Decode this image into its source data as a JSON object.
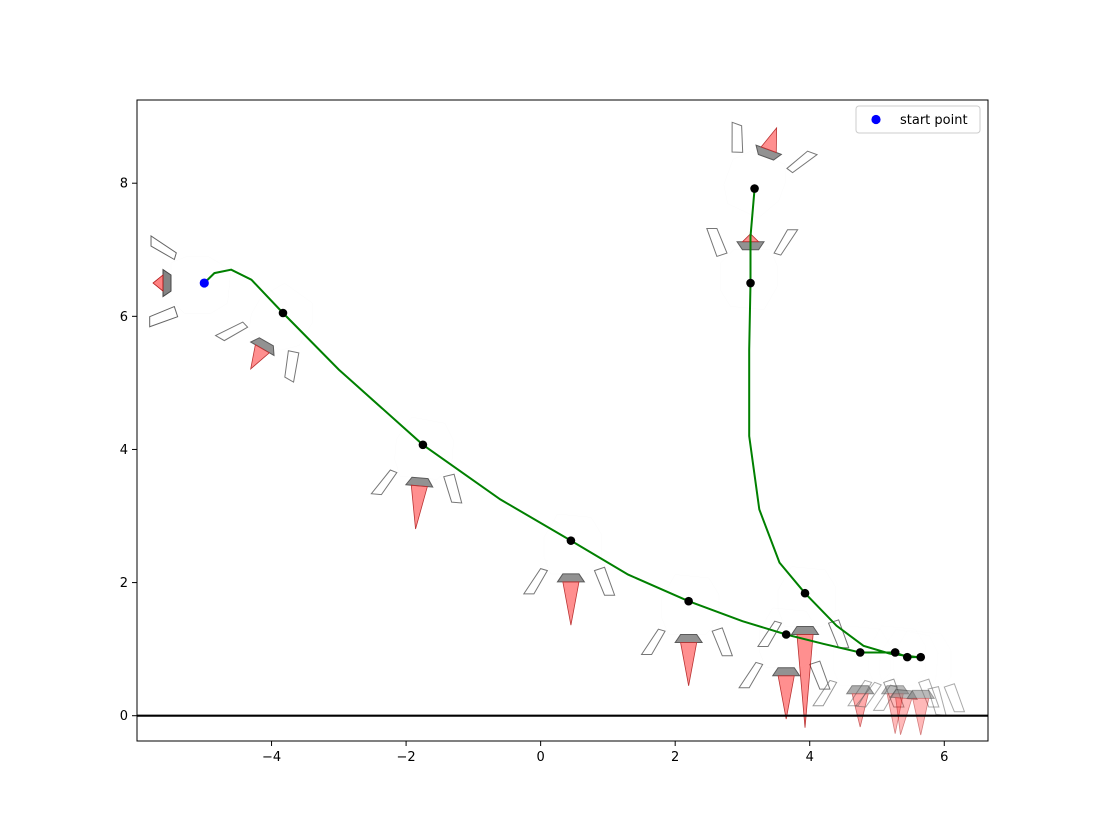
{
  "chart_data": {
    "type": "scatter",
    "title": "",
    "xlabel": "",
    "ylabel": "",
    "xlim": [
      -6.0,
      6.65
    ],
    "ylim": [
      -0.38,
      9.25
    ],
    "x_ticks": [
      -4,
      -2,
      0,
      2,
      4,
      6
    ],
    "x_tick_labels": [
      "−4",
      "−2",
      "0",
      "2",
      "4",
      "6"
    ],
    "y_ticks": [
      0,
      2,
      4,
      6,
      8
    ],
    "y_tick_labels": [
      "0",
      "2",
      "4",
      "6",
      "8"
    ],
    "grid": false,
    "ground_line_y": 0,
    "legend": {
      "placement": "top-right",
      "entries": [
        {
          "label": "start point",
          "color": "#0000ff"
        }
      ]
    },
    "colors": {
      "trajectory": "#008000",
      "start_point": "#0000ff",
      "waypoint": "#000000",
      "flame": "#ff0000",
      "nozzle": "#333333",
      "body_outline": "#555555"
    },
    "series": [
      {
        "name": "start point",
        "points": [
          {
            "x": -5.0,
            "y": 6.5
          }
        ]
      }
    ],
    "trajectories": [
      {
        "points": [
          {
            "x": -5.0,
            "y": 6.5
          },
          {
            "x": -4.85,
            "y": 6.65
          },
          {
            "x": -4.6,
            "y": 6.7
          },
          {
            "x": -4.3,
            "y": 6.55
          },
          {
            "x": -3.83,
            "y": 6.05
          },
          {
            "x": -3.0,
            "y": 5.2
          },
          {
            "x": -1.75,
            "y": 4.07
          },
          {
            "x": -0.6,
            "y": 3.25
          },
          {
            "x": 0.45,
            "y": 2.63
          },
          {
            "x": 1.3,
            "y": 2.12
          },
          {
            "x": 2.2,
            "y": 1.72
          },
          {
            "x": 3.0,
            "y": 1.42
          },
          {
            "x": 3.65,
            "y": 1.22
          },
          {
            "x": 4.2,
            "y": 1.08
          },
          {
            "x": 4.75,
            "y": 0.95
          },
          {
            "x": 5.27,
            "y": 0.95
          },
          {
            "x": 5.45,
            "y": 0.88
          },
          {
            "x": 5.65,
            "y": 0.88
          }
        ]
      },
      {
        "points": [
          {
            "x": 3.18,
            "y": 7.92
          },
          {
            "x": 3.12,
            "y": 7.2
          },
          {
            "x": 3.12,
            "y": 6.5
          },
          {
            "x": 3.1,
            "y": 5.5
          },
          {
            "x": 3.1,
            "y": 4.2
          },
          {
            "x": 3.25,
            "y": 3.1
          },
          {
            "x": 3.55,
            "y": 2.3
          },
          {
            "x": 3.93,
            "y": 1.84
          },
          {
            "x": 4.4,
            "y": 1.35
          },
          {
            "x": 4.8,
            "y": 1.05
          },
          {
            "x": 5.2,
            "y": 0.93
          },
          {
            "x": 5.6,
            "y": 0.88
          }
        ]
      }
    ],
    "waypoints": [
      {
        "x": -3.83,
        "y": 6.05
      },
      {
        "x": -1.75,
        "y": 4.07
      },
      {
        "x": 0.45,
        "y": 2.63
      },
      {
        "x": 2.2,
        "y": 1.72
      },
      {
        "x": 3.65,
        "y": 1.22
      },
      {
        "x": 4.75,
        "y": 0.95
      },
      {
        "x": 5.27,
        "y": 0.95
      },
      {
        "x": 5.45,
        "y": 0.88
      },
      {
        "x": 5.65,
        "y": 0.88
      },
      {
        "x": 3.18,
        "y": 7.92
      },
      {
        "x": 3.12,
        "y": 6.5
      },
      {
        "x": 3.93,
        "y": 1.84
      }
    ],
    "craft_outlines": [
      {
        "x": -5.0,
        "y": 6.5,
        "angle_deg": 90,
        "thrust": 0.05,
        "opacity": 0.9
      },
      {
        "x": -3.83,
        "y": 6.05,
        "angle_deg": 30,
        "thrust": 0.25,
        "opacity": 0.8
      },
      {
        "x": -1.75,
        "y": 4.07,
        "angle_deg": 5,
        "thrust": 0.55,
        "opacity": 0.8
      },
      {
        "x": 0.45,
        "y": 2.63,
        "angle_deg": 0,
        "thrust": 0.55,
        "opacity": 0.8
      },
      {
        "x": 2.2,
        "y": 1.72,
        "angle_deg": 0,
        "thrust": 0.55,
        "opacity": 0.8
      },
      {
        "x": 3.65,
        "y": 1.22,
        "angle_deg": 0,
        "thrust": 0.55,
        "opacity": 0.8
      },
      {
        "x": 4.75,
        "y": 0.95,
        "angle_deg": 0,
        "thrust": 0.4,
        "opacity": 0.6
      },
      {
        "x": 5.27,
        "y": 0.95,
        "angle_deg": 0,
        "thrust": 0.5,
        "opacity": 0.5
      },
      {
        "x": 5.45,
        "y": 0.88,
        "angle_deg": 5,
        "thrust": 0.45,
        "opacity": 0.5
      },
      {
        "x": 5.65,
        "y": 0.88,
        "angle_deg": 0,
        "thrust": 0.45,
        "opacity": 0.5
      },
      {
        "x": 3.18,
        "y": 7.92,
        "angle_deg": 200,
        "thrust": 0.25,
        "opacity": 0.8
      },
      {
        "x": 3.12,
        "y": 6.5,
        "angle_deg": 180,
        "thrust": 0.02,
        "opacity": 0.8
      },
      {
        "x": 3.93,
        "y": 1.84,
        "angle_deg": 0,
        "thrust": 1.3,
        "opacity": 0.8
      }
    ]
  }
}
